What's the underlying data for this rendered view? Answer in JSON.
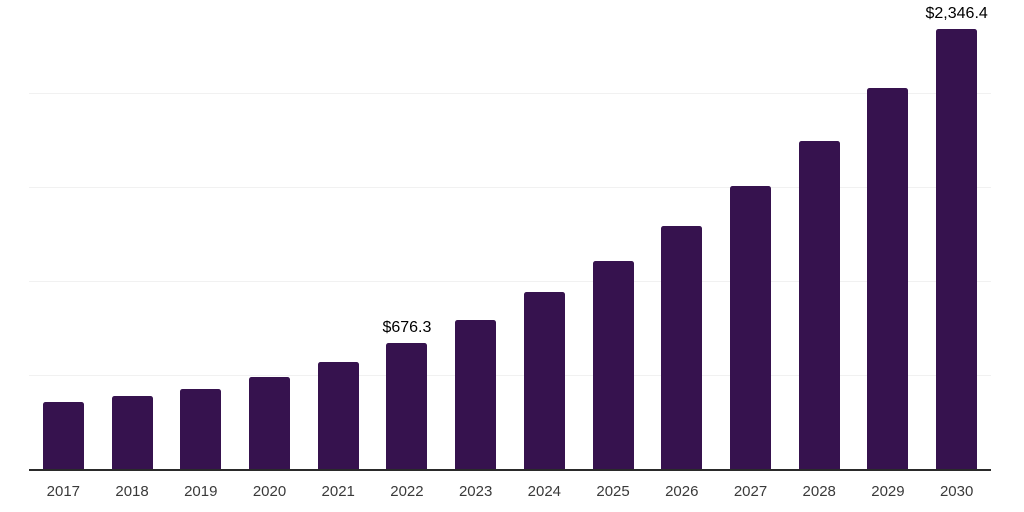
{
  "canvas": {
    "background": "#ffffff"
  },
  "chart_data": {
    "type": "bar",
    "title": "",
    "xlabel": "",
    "ylabel": "",
    "categories": [
      "2017",
      "2018",
      "2019",
      "2020",
      "2021",
      "2022",
      "2023",
      "2024",
      "2025",
      "2026",
      "2027",
      "2028",
      "2029",
      "2030"
    ],
    "values": [
      360,
      394,
      431,
      495,
      575,
      676.3,
      798,
      947,
      1112,
      1298,
      1511,
      1750,
      2032,
      2346.4
    ],
    "labeled_points": [
      {
        "category": "2022",
        "label": "$676.3"
      },
      {
        "category": "2030",
        "label": "$2,346.4"
      }
    ],
    "ylim": [
      0,
      2500
    ],
    "gridline_step": 500,
    "grid": "horizontal-faint",
    "y_axis_tick_labels": "none",
    "legend": "none",
    "bar_color": "#36124E",
    "axis_line_color": "#2a2a2a",
    "gridline_color": "#f1f1f1",
    "value_label_color": "#000000",
    "tick_label_color": "#3a3a3a"
  }
}
